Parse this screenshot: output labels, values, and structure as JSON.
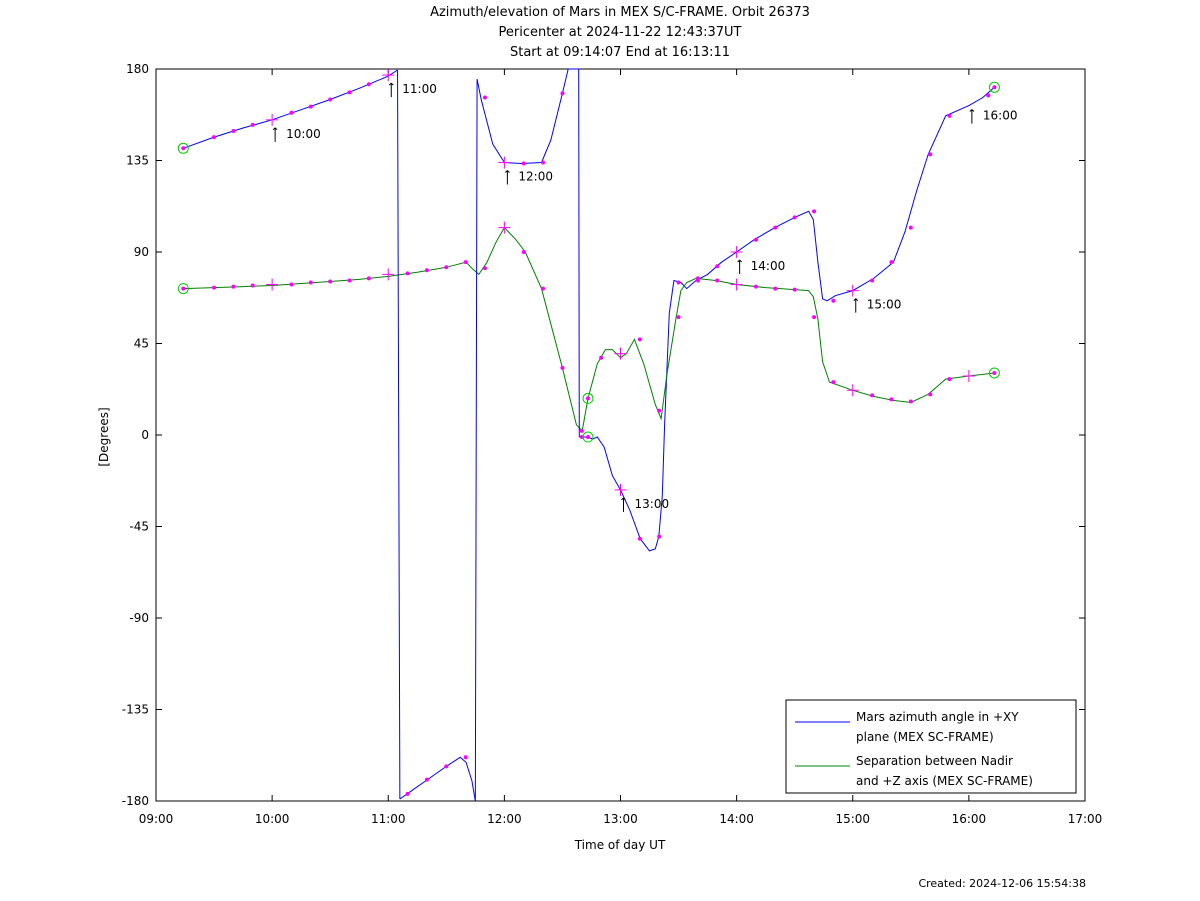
{
  "title_lines": [
    "Azimuth/elevation of Mars in MEX S/C-FRAME.  Orbit 26373",
    "Pericenter at 2024-11-22 12:43:37UT",
    "Start at 09:14:07 End at 16:13:11"
  ],
  "footer": "Created: 2024-12-06 15:54:38",
  "chart_data": {
    "type": "line",
    "title": "Azimuth/elevation of Mars in MEX S/C-FRAME.  Orbit 26373",
    "xlabel": "Time of day UT",
    "ylabel": "[Degrees]",
    "xlim": [
      9.0,
      17.0
    ],
    "ylim": [
      -180,
      180
    ],
    "x_ticks": [
      9,
      10,
      11,
      12,
      13,
      14,
      15,
      16,
      17
    ],
    "x_tick_labels": [
      "09:00",
      "10:00",
      "11:00",
      "12:00",
      "13:00",
      "14:00",
      "15:00",
      "16:00",
      "17:00"
    ],
    "y_ticks": [
      180,
      135,
      90,
      45,
      0,
      -45,
      -90,
      -135,
      -180
    ],
    "y_tick_labels": [
      "180",
      "135",
      "90",
      "45",
      "0",
      "-45",
      "-90",
      "-135",
      "-180"
    ],
    "grid": false,
    "legend_position": "bottom-right",
    "marker_color": "#ff00ff",
    "start_marker_color": "#00cc00",
    "series": [
      {
        "name": "Mars azimuth angle in +XY plane (MEX SC-FRAME)",
        "legend_lines": [
          "Mars azimuth angle in +XY",
          "plane (MEX SC-FRAME)"
        ],
        "color": "#0000ff",
        "segments": [
          [
            [
              9.235,
              141
            ],
            [
              9.5,
              146.5
            ],
            [
              9.75,
              151
            ],
            [
              10,
              155
            ],
            [
              10.25,
              160
            ],
            [
              10.5,
              165
            ],
            [
              10.75,
              170.5
            ],
            [
              11,
              176.5
            ],
            [
              11.08,
              179.5
            ]
          ],
          [
            [
              11.1,
              -179
            ],
            [
              11.2,
              -175
            ],
            [
              11.35,
              -169
            ],
            [
              11.5,
              -163
            ],
            [
              11.62,
              -158.5
            ],
            [
              11.67,
              -161
            ],
            [
              11.72,
              -170
            ],
            [
              11.75,
              -180
            ]
          ],
          [
            [
              11.765,
              175
            ],
            [
              11.8,
              165
            ],
            [
              11.9,
              143
            ],
            [
              12,
              134
            ],
            [
              12.15,
              133.5
            ],
            [
              12.32,
              134
            ],
            [
              12.4,
              145
            ],
            [
              12.5,
              168
            ],
            [
              12.55,
              180
            ],
            [
              12.64,
              180
            ]
          ],
          [
            [
              12.645,
              -1
            ],
            [
              12.68,
              -1
            ],
            [
              12.72,
              -1
            ],
            [
              12.76,
              -2
            ],
            [
              12.8,
              -1
            ],
            [
              12.86,
              -6
            ],
            [
              12.93,
              -20
            ],
            [
              13,
              -27
            ],
            [
              13.08,
              -37
            ],
            [
              13.17,
              -51
            ],
            [
              13.25,
              -57
            ],
            [
              13.3,
              -56
            ],
            [
              13.33,
              -50
            ],
            [
              13.36,
              -30
            ],
            [
              13.38,
              5
            ],
            [
              13.42,
              60
            ],
            [
              13.46,
              76
            ],
            [
              13.52,
              75
            ],
            [
              13.57,
              72
            ],
            [
              13.65,
              76
            ],
            [
              13.75,
              79
            ],
            [
              13.87,
              85
            ],
            [
              14,
              90
            ],
            [
              14.15,
              96
            ],
            [
              14.33,
              102
            ],
            [
              14.5,
              107
            ],
            [
              14.62,
              110
            ],
            [
              14.66,
              106
            ],
            [
              14.7,
              85
            ],
            [
              14.74,
              67
            ],
            [
              14.78,
              66
            ],
            [
              14.85,
              68.5
            ],
            [
              15,
              71
            ],
            [
              15.18,
              77
            ],
            [
              15.35,
              85
            ],
            [
              15.45,
              100
            ],
            [
              15.55,
              120
            ],
            [
              15.65,
              138
            ],
            [
              15.8,
              157
            ],
            [
              16,
              162
            ],
            [
              16.12,
              166
            ],
            [
              16.22,
              171
            ]
          ]
        ]
      },
      {
        "name": "Separation between Nadir and +Z axis (MEX SC-FRAME)",
        "legend_lines": [
          "Separation between Nadir",
          "and +Z axis (MEX SC-FRAME)"
        ],
        "color": "#008000",
        "segments": [
          [
            [
              9.235,
              72
            ],
            [
              9.5,
              72.5
            ],
            [
              9.75,
              73
            ],
            [
              10,
              73.5
            ],
            [
              10.25,
              74.5
            ],
            [
              10.5,
              75.5
            ],
            [
              10.75,
              76.5
            ],
            [
              11,
              78
            ],
            [
              11.25,
              80
            ],
            [
              11.5,
              82.5
            ],
            [
              11.67,
              85
            ],
            [
              11.72,
              82
            ],
            [
              11.78,
              79
            ],
            [
              11.85,
              85
            ],
            [
              11.93,
              95
            ],
            [
              12,
              102
            ],
            [
              12.1,
              96
            ],
            [
              12.18,
              90
            ],
            [
              12.32,
              72
            ],
            [
              12.5,
              33
            ],
            [
              12.62,
              5
            ],
            [
              12.67,
              2
            ],
            [
              12.72,
              18
            ],
            [
              12.8,
              35
            ],
            [
              12.87,
              42
            ],
            [
              12.93,
              42
            ],
            [
              13,
              38
            ],
            [
              13.05,
              40
            ],
            [
              13.12,
              47
            ],
            [
              13.2,
              35
            ],
            [
              13.3,
              15
            ],
            [
              13.35,
              8
            ],
            [
              13.4,
              30
            ],
            [
              13.48,
              58
            ],
            [
              13.52,
              71
            ],
            [
              13.57,
              75
            ],
            [
              13.65,
              77
            ],
            [
              13.82,
              76
            ],
            [
              14,
              74
            ],
            [
              14.25,
              72.5
            ],
            [
              14.5,
              71.5
            ],
            [
              14.62,
              71
            ],
            [
              14.66,
              68
            ],
            [
              14.7,
              57
            ],
            [
              14.74,
              36
            ],
            [
              14.8,
              26
            ],
            [
              15,
              22
            ],
            [
              15.18,
              19
            ],
            [
              15.35,
              17
            ],
            [
              15.5,
              16
            ],
            [
              15.65,
              20
            ],
            [
              15.8,
              27.5
            ],
            [
              16,
              29
            ],
            [
              16.22,
              30.5
            ]
          ]
        ]
      }
    ],
    "markers": [
      [
        9.5,
        146.5
      ],
      [
        9.667,
        149.5
      ],
      [
        9.833,
        152.5
      ],
      [
        10.167,
        158.5
      ],
      [
        10.333,
        161.5
      ],
      [
        10.5,
        165
      ],
      [
        10.667,
        168.5
      ],
      [
        10.833,
        172.5
      ],
      [
        11.167,
        -176.5
      ],
      [
        11.333,
        -169.5
      ],
      [
        11.5,
        -163
      ],
      [
        11.667,
        -158.5
      ],
      [
        11.833,
        166
      ],
      [
        12.167,
        133.5
      ],
      [
        12.333,
        134
      ],
      [
        12.5,
        168
      ],
      [
        12.667,
        -1
      ],
      [
        13.167,
        -51
      ],
      [
        13.333,
        -50
      ],
      [
        13.5,
        75
      ],
      [
        13.667,
        76
      ],
      [
        13.833,
        83
      ],
      [
        14.167,
        96
      ],
      [
        14.333,
        102
      ],
      [
        14.5,
        107
      ],
      [
        14.667,
        110
      ],
      [
        14.833,
        66
      ],
      [
        15.167,
        76
      ],
      [
        15.333,
        85
      ],
      [
        15.5,
        102
      ],
      [
        15.667,
        138
      ],
      [
        15.833,
        157
      ],
      [
        16.167,
        167
      ],
      [
        9.5,
        72.5
      ],
      [
        9.667,
        73
      ],
      [
        9.833,
        73.5
      ],
      [
        10.167,
        74
      ],
      [
        10.333,
        75
      ],
      [
        10.5,
        75.5
      ],
      [
        10.667,
        76
      ],
      [
        10.833,
        77
      ],
      [
        11.167,
        79.5
      ],
      [
        11.333,
        81
      ],
      [
        11.5,
        82.5
      ],
      [
        11.667,
        85
      ],
      [
        11.833,
        82
      ],
      [
        12.167,
        90
      ],
      [
        12.333,
        72
      ],
      [
        12.5,
        33
      ],
      [
        12.667,
        2
      ],
      [
        12.833,
        38
      ],
      [
        13.167,
        47
      ],
      [
        13.333,
        12
      ],
      [
        13.5,
        58
      ],
      [
        13.667,
        77
      ],
      [
        13.833,
        76
      ],
      [
        14.167,
        73
      ],
      [
        14.333,
        72
      ],
      [
        14.5,
        71.5
      ],
      [
        14.667,
        58
      ],
      [
        14.833,
        26
      ],
      [
        15.167,
        19.5
      ],
      [
        15.333,
        17.5
      ],
      [
        15.5,
        16.5
      ],
      [
        15.667,
        20
      ],
      [
        15.833,
        27.5
      ]
    ],
    "hour_markers": [
      [
        10,
        155
      ],
      [
        11,
        177
      ],
      [
        12,
        134
      ],
      [
        13,
        -27
      ],
      [
        14,
        90
      ],
      [
        15,
        71
      ],
      [
        10,
        74
      ],
      [
        11,
        79
      ],
      [
        12,
        102
      ],
      [
        13,
        40
      ],
      [
        14,
        74
      ],
      [
        15,
        22
      ],
      [
        16,
        29
      ]
    ],
    "start_end_markers": [
      [
        9.235,
        141
      ],
      [
        16.22,
        171
      ],
      [
        9.235,
        72
      ],
      [
        16.22,
        30.5
      ],
      [
        12.72,
        18
      ],
      [
        12.72,
        -1
      ]
    ],
    "annotations": [
      {
        "text": "10:00",
        "x": 10,
        "y": 155
      },
      {
        "text": "11:00",
        "x": 11,
        "y": 177
      },
      {
        "text": "12:00",
        "x": 12,
        "y": 134
      },
      {
        "text": "13:00",
        "x": 13,
        "y": -27
      },
      {
        "text": "14:00",
        "x": 14,
        "y": 90
      },
      {
        "text": "15:00",
        "x": 15,
        "y": 71
      },
      {
        "text": "16:00",
        "x": 16,
        "y": 164
      }
    ]
  }
}
